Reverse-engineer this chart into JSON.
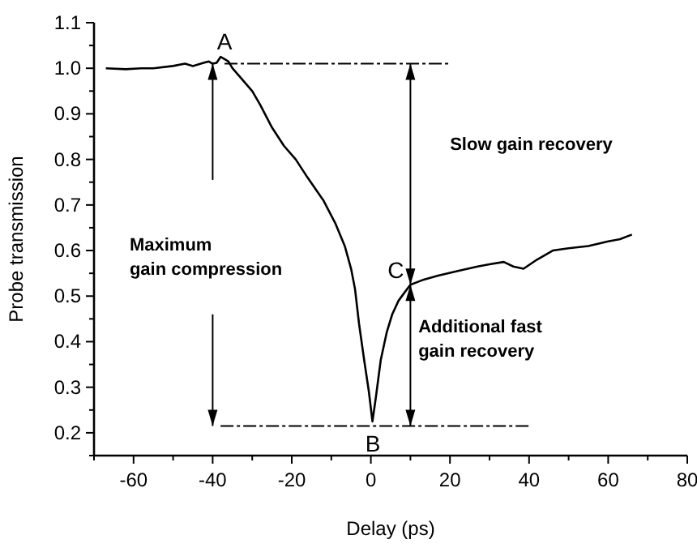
{
  "chart_data": {
    "type": "line",
    "xlabel": "Delay (ps)",
    "ylabel": "Probe transmission",
    "xlim": [
      -70,
      80
    ],
    "xticks": [
      -60,
      -40,
      -20,
      0,
      20,
      40,
      60,
      80
    ],
    "ylim": [
      0.15,
      1.1
    ],
    "yticks": [
      0.2,
      0.3,
      0.4,
      0.5,
      0.6,
      0.7,
      0.8,
      0.9,
      {
        "value": 1,
        "label": "1.0"
      },
      1.1
    ],
    "grid": false,
    "series": [
      {
        "color": "#000000",
        "x": [
          -67,
          -62,
          -58,
          -55,
          -50,
          -47,
          -45,
          -43,
          -41,
          -40,
          -39,
          -38,
          -37,
          -36,
          -35,
          -33,
          -30,
          -28,
          -25,
          -22,
          -19,
          -16,
          -12,
          -9,
          -6.6,
          -5,
          -4,
          -3,
          -1.7,
          -0.5,
          0.4,
          1.3,
          2.5,
          4,
          5.4,
          7,
          8.7,
          10,
          13,
          17,
          22,
          27,
          30,
          33.6,
          36,
          38.6,
          42,
          46,
          50,
          55,
          60,
          63,
          66
        ],
        "values": [
          1.0,
          0.998,
          1.0,
          1.0,
          1.005,
          1.01,
          1.005,
          1.01,
          1.015,
          1.01,
          1.012,
          1.025,
          1.02,
          1.015,
          1.0,
          0.98,
          0.95,
          0.92,
          0.87,
          0.83,
          0.8,
          0.76,
          0.71,
          0.66,
          0.61,
          0.56,
          0.515,
          0.44,
          0.36,
          0.29,
          0.225,
          0.28,
          0.36,
          0.42,
          0.46,
          0.49,
          0.51,
          0.525,
          0.535,
          0.545,
          0.555,
          0.565,
          0.57,
          0.575,
          0.565,
          0.56,
          0.58,
          0.6,
          0.605,
          0.61,
          0.62,
          0.625,
          0.635
        ]
      },
      {
        "type": "line",
        "color": "#000000",
        "line_style": "dashed",
        "x": [
          -37,
          20
        ],
        "values": [
          1.01,
          1.01
        ]
      },
      {
        "type": "line",
        "color": "#000000",
        "line_style": "dashed",
        "x": [
          -38,
          40
        ],
        "values": [
          0.215,
          0.215
        ]
      }
    ],
    "annotations": [
      {
        "text": "A",
        "x": -37,
        "y": 1.02
      },
      {
        "text": "B",
        "x": 0.5,
        "y": 0.215
      },
      {
        "text": "C",
        "x": 10,
        "y": 0.525
      },
      "Maximum\ngain compression",
      "Slow gain recovery",
      "Additional fast\ngain recovery"
    ]
  }
}
